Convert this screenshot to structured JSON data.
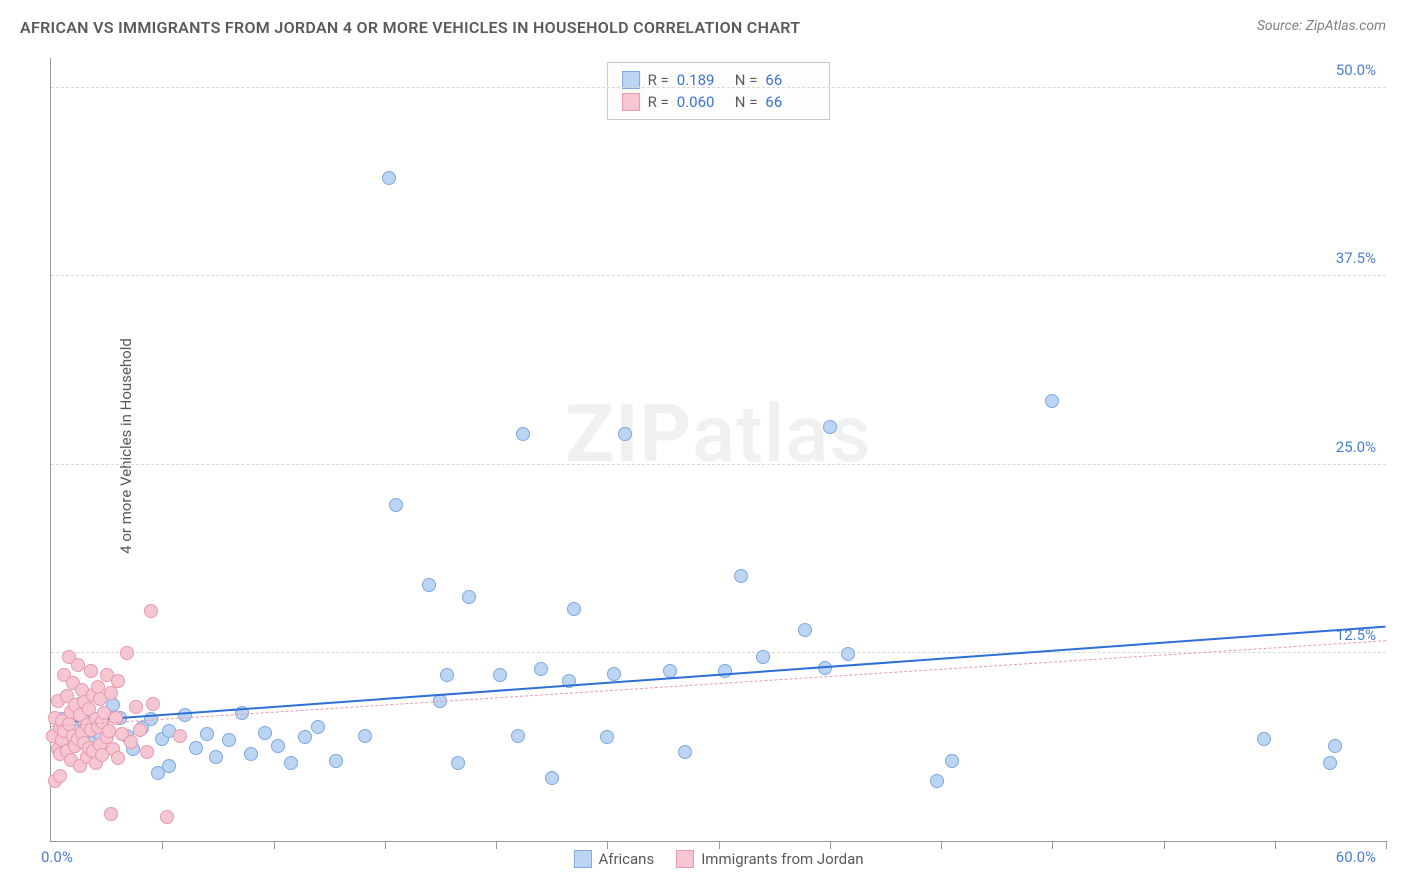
{
  "title": "AFRICAN VS IMMIGRANTS FROM JORDAN 4 OR MORE VEHICLES IN HOUSEHOLD CORRELATION CHART",
  "source": "Source: ZipAtlas.com",
  "y_axis_label": "4 or more Vehicles in Household",
  "watermark_a": "ZIP",
  "watermark_b": "atlas",
  "chart": {
    "type": "scatter",
    "xlim": [
      0,
      60
    ],
    "ylim": [
      0,
      52
    ],
    "x_origin_label": "0.0%",
    "x_max_label": "60.0%",
    "y_ticks": [
      {
        "v": 12.5,
        "label": "12.5%"
      },
      {
        "v": 25.0,
        "label": "25.0%"
      },
      {
        "v": 37.5,
        "label": "37.5%"
      },
      {
        "v": 50.0,
        "label": "50.0%"
      }
    ],
    "x_tick_positions": [
      5,
      10,
      15,
      20,
      25,
      30,
      35,
      40,
      45,
      50,
      55,
      60
    ],
    "grid_color": "#d8d8d8",
    "background_color": "#ffffff",
    "marker_radius": 7,
    "series": [
      {
        "name": "Africans",
        "fill": "#bcd5f2",
        "stroke": "#7fa9dd",
        "r_value": "0.189",
        "n_value": "66",
        "trend": {
          "x1": 0,
          "y1": 7.8,
          "x2": 60,
          "y2": 14.2,
          "color": "#2d6fd6",
          "width": 2.5,
          "dash": false
        },
        "points": [
          [
            0.3,
            7.2
          ],
          [
            0.5,
            8.1
          ],
          [
            0.7,
            6.3
          ],
          [
            1.0,
            7.8
          ],
          [
            1.3,
            9.1
          ],
          [
            1.8,
            6.5
          ],
          [
            1.5,
            8.0
          ],
          [
            2.2,
            7.1
          ],
          [
            2.5,
            8.3
          ],
          [
            2.0,
            6.0
          ],
          [
            3.1,
            8.2
          ],
          [
            3.4,
            7.0
          ],
          [
            2.8,
            9.0
          ],
          [
            3.7,
            6.1
          ],
          [
            4.1,
            7.5
          ],
          [
            4.5,
            8.1
          ],
          [
            5.0,
            6.8
          ],
          [
            5.3,
            7.3
          ],
          [
            5.3,
            5.0
          ],
          [
            6.0,
            8.4
          ],
          [
            6.5,
            6.2
          ],
          [
            7.0,
            7.1
          ],
          [
            7.4,
            5.6
          ],
          [
            8.0,
            6.7
          ],
          [
            8.6,
            8.5
          ],
          [
            9.0,
            5.8
          ],
          [
            9.6,
            7.2
          ],
          [
            10.2,
            6.3
          ],
          [
            10.8,
            5.2
          ],
          [
            11.4,
            6.9
          ],
          [
            12.0,
            7.6
          ],
          [
            12.8,
            5.3
          ],
          [
            14.1,
            7.0
          ],
          [
            15.5,
            22.3
          ],
          [
            15.2,
            44.0
          ],
          [
            17.0,
            17.0
          ],
          [
            17.5,
            9.3
          ],
          [
            17.8,
            11.0
          ],
          [
            18.3,
            5.2
          ],
          [
            18.8,
            16.2
          ],
          [
            20.2,
            11.0
          ],
          [
            21.0,
            7.0
          ],
          [
            21.2,
            27.0
          ],
          [
            22.0,
            11.4
          ],
          [
            22.5,
            4.2
          ],
          [
            23.3,
            10.6
          ],
          [
            23.5,
            15.4
          ],
          [
            25.0,
            6.9
          ],
          [
            25.3,
            11.1
          ],
          [
            25.8,
            27.0
          ],
          [
            27.8,
            11.3
          ],
          [
            28.5,
            5.9
          ],
          [
            30.3,
            11.3
          ],
          [
            31.0,
            17.6
          ],
          [
            32.0,
            12.2
          ],
          [
            33.9,
            14.0
          ],
          [
            34.8,
            11.5
          ],
          [
            35.0,
            27.5
          ],
          [
            35.8,
            12.4
          ],
          [
            39.8,
            4.0
          ],
          [
            40.5,
            5.3
          ],
          [
            45.0,
            29.2
          ],
          [
            54.5,
            6.8
          ],
          [
            57.5,
            5.2
          ],
          [
            57.7,
            6.3
          ],
          [
            4.8,
            4.5
          ]
        ]
      },
      {
        "name": "Immigrants from Jordan",
        "fill": "#f6c6d2",
        "stroke": "#e79ab0",
        "r_value": "0.060",
        "n_value": "66",
        "trend": {
          "x1": 0,
          "y1": 7.6,
          "x2": 60,
          "y2": 13.3,
          "color": "#e79ab0",
          "width": 1.2,
          "dash": true
        },
        "points": [
          [
            0.1,
            7.0
          ],
          [
            0.2,
            8.2
          ],
          [
            0.3,
            6.1
          ],
          [
            0.3,
            9.3
          ],
          [
            0.4,
            7.5
          ],
          [
            0.4,
            5.8
          ],
          [
            0.5,
            8.0
          ],
          [
            0.5,
            6.7
          ],
          [
            0.6,
            11.0
          ],
          [
            0.6,
            7.3
          ],
          [
            0.7,
            9.6
          ],
          [
            0.7,
            6.0
          ],
          [
            0.8,
            12.2
          ],
          [
            0.8,
            7.8
          ],
          [
            0.9,
            5.4
          ],
          [
            0.9,
            8.6
          ],
          [
            1.0,
            10.5
          ],
          [
            1.0,
            7.0
          ],
          [
            1.1,
            6.3
          ],
          [
            1.1,
            9.0
          ],
          [
            1.2,
            11.7
          ],
          [
            1.2,
            6.8
          ],
          [
            1.3,
            5.0
          ],
          [
            1.3,
            8.4
          ],
          [
            1.4,
            7.2
          ],
          [
            1.4,
            10.0
          ],
          [
            1.5,
            6.5
          ],
          [
            1.5,
            9.2
          ],
          [
            1.6,
            7.7
          ],
          [
            1.6,
            5.6
          ],
          [
            1.7,
            8.8
          ],
          [
            1.7,
            6.2
          ],
          [
            1.8,
            11.3
          ],
          [
            1.8,
            7.4
          ],
          [
            1.9,
            9.7
          ],
          [
            1.9,
            6.0
          ],
          [
            2.0,
            8.1
          ],
          [
            2.0,
            5.2
          ],
          [
            2.1,
            10.2
          ],
          [
            2.1,
            7.6
          ],
          [
            2.2,
            6.4
          ],
          [
            2.2,
            9.4
          ],
          [
            2.3,
            7.9
          ],
          [
            2.3,
            5.7
          ],
          [
            2.4,
            8.5
          ],
          [
            2.5,
            11.0
          ],
          [
            2.5,
            6.9
          ],
          [
            2.6,
            7.3
          ],
          [
            2.7,
            9.8
          ],
          [
            2.8,
            6.1
          ],
          [
            2.9,
            8.2
          ],
          [
            3.0,
            5.5
          ],
          [
            3.0,
            10.6
          ],
          [
            3.2,
            7.1
          ],
          [
            3.4,
            12.5
          ],
          [
            3.6,
            6.6
          ],
          [
            3.8,
            8.9
          ],
          [
            4.0,
            7.4
          ],
          [
            4.3,
            5.9
          ],
          [
            4.6,
            9.1
          ],
          [
            4.5,
            15.3
          ],
          [
            5.8,
            7.0
          ],
          [
            2.7,
            1.8
          ],
          [
            5.2,
            1.6
          ],
          [
            0.2,
            4.0
          ],
          [
            0.4,
            4.3
          ]
        ]
      }
    ],
    "legend_bottom": [
      {
        "label": "Africans",
        "fill": "#bcd5f2",
        "stroke": "#7fa9dd"
      },
      {
        "label": "Immigrants from Jordan",
        "fill": "#f6c6d2",
        "stroke": "#e79ab0"
      }
    ]
  }
}
